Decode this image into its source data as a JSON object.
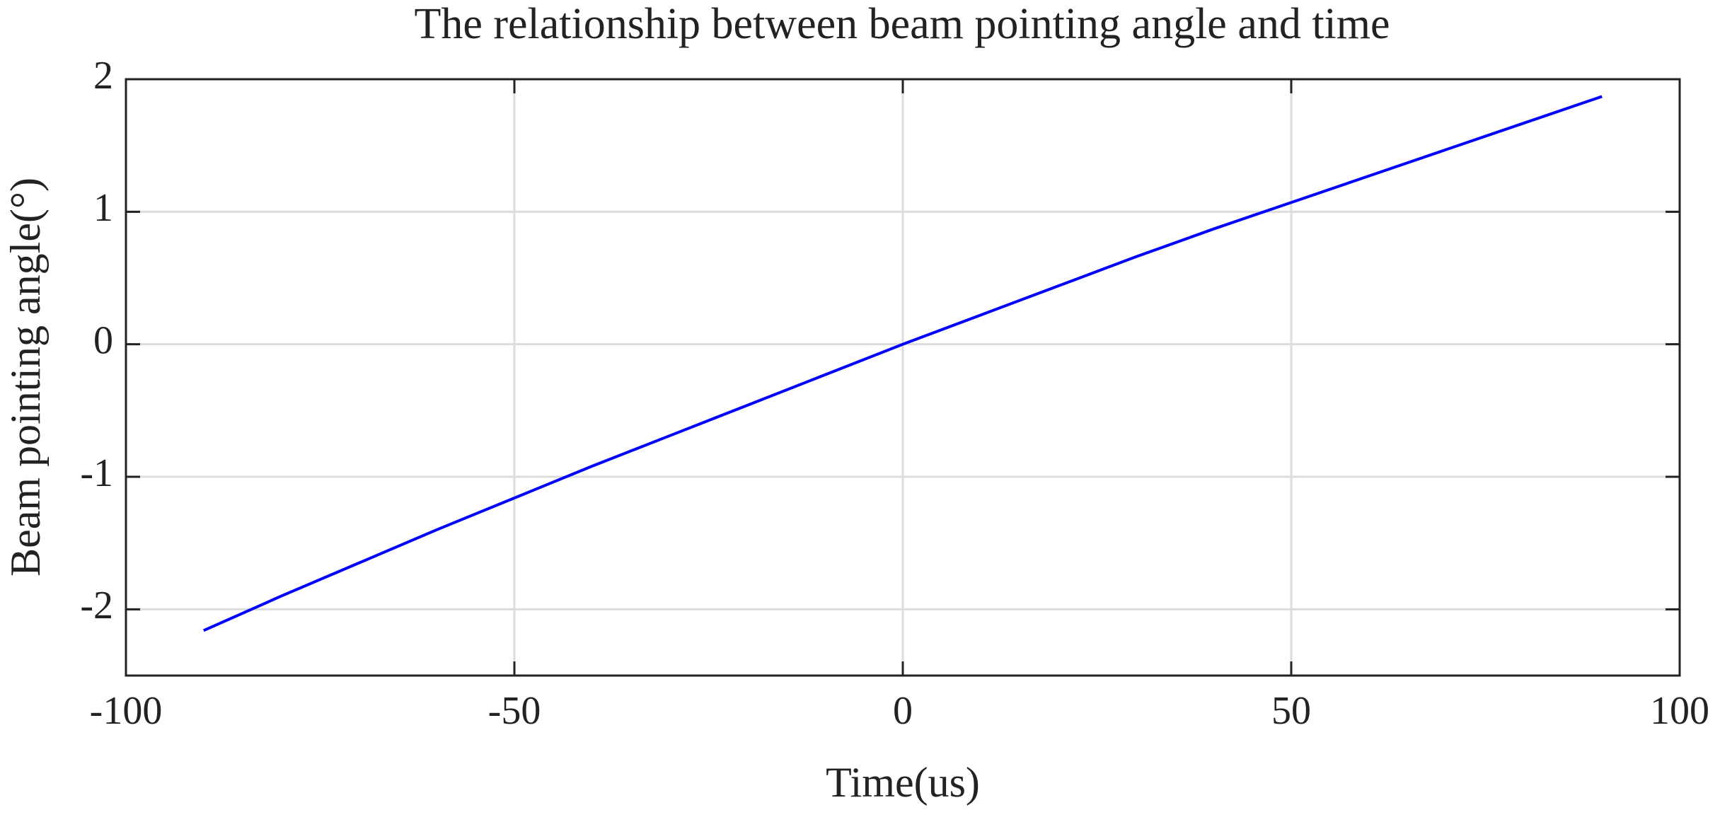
{
  "chart_data": {
    "type": "line",
    "title": "The relationship between beam pointing angle and time",
    "x_label": "Time(us)",
    "y_label": "Beam pointing angle(°)",
    "x": [
      -90,
      -80,
      -70,
      -60,
      -50,
      -40,
      -30,
      -20,
      -10,
      0,
      10,
      20,
      30,
      40,
      50,
      60,
      70,
      80,
      90
    ],
    "series": [
      {
        "name": "Beam pointing angle",
        "color": "#0000ff",
        "values": [
          -2.16,
          -1.9,
          -1.65,
          -1.4,
          -1.16,
          -0.92,
          -0.69,
          -0.46,
          -0.23,
          0,
          0.22,
          0.44,
          0.66,
          0.87,
          1.07,
          1.27,
          1.47,
          1.67,
          1.87
        ]
      }
    ],
    "xlim": [
      -100,
      100
    ],
    "xticks": [
      -100,
      -50,
      0,
      50,
      100
    ],
    "ylim": [
      -2.5,
      2
    ],
    "yticks": [
      -2,
      -1,
      0,
      1,
      2
    ],
    "grid": true
  }
}
